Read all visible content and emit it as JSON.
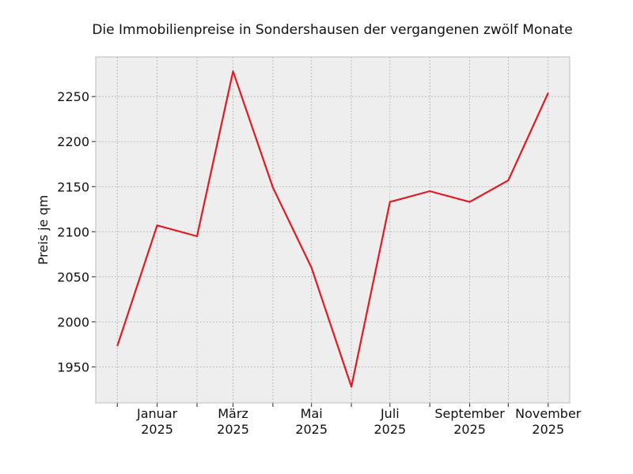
{
  "chart_data": {
    "type": "line",
    "title": "Die Immobilienpreise in Sondershausen der vergangenen zwölf Monate",
    "xlabel": "",
    "ylabel": "Preis je qm",
    "x": [
      "2024-12-01",
      "2025-01-01",
      "2025-02-01",
      "2025-03-01",
      "2025-04-01",
      "2025-05-01",
      "2025-06-01",
      "2025-07-01",
      "2025-08-01",
      "2025-09-01",
      "2025-10-01",
      "2025-11-01"
    ],
    "series": [
      {
        "values": [
          1973,
          2107,
          2095,
          2278,
          2149,
          2060,
          1928,
          2133,
          2145,
          2133,
          2157,
          2254
        ]
      }
    ],
    "ylim": [
      1910,
      2294
    ],
    "yticks": [
      1950,
      2000,
      2050,
      2100,
      2150,
      2200,
      2250
    ],
    "xtick_labels": [
      {
        "x": "2025-01-01",
        "month": "Januar",
        "year": "2025"
      },
      {
        "x": "2025-03-01",
        "month": "März",
        "year": "2025"
      },
      {
        "x": "2025-05-01",
        "month": "Mai",
        "year": "2025"
      },
      {
        "x": "2025-07-01",
        "month": "Juli",
        "year": "2025"
      },
      {
        "x": "2025-09-01",
        "month": "September",
        "year": "2025"
      },
      {
        "x": "2025-11-01",
        "month": "November",
        "year": "2025"
      }
    ],
    "grid": true,
    "colors": {
      "line": "#e01b24",
      "plot_background": "#eeeeee",
      "grid": "#b0b0b0",
      "frame": "#bcbcbc"
    }
  }
}
